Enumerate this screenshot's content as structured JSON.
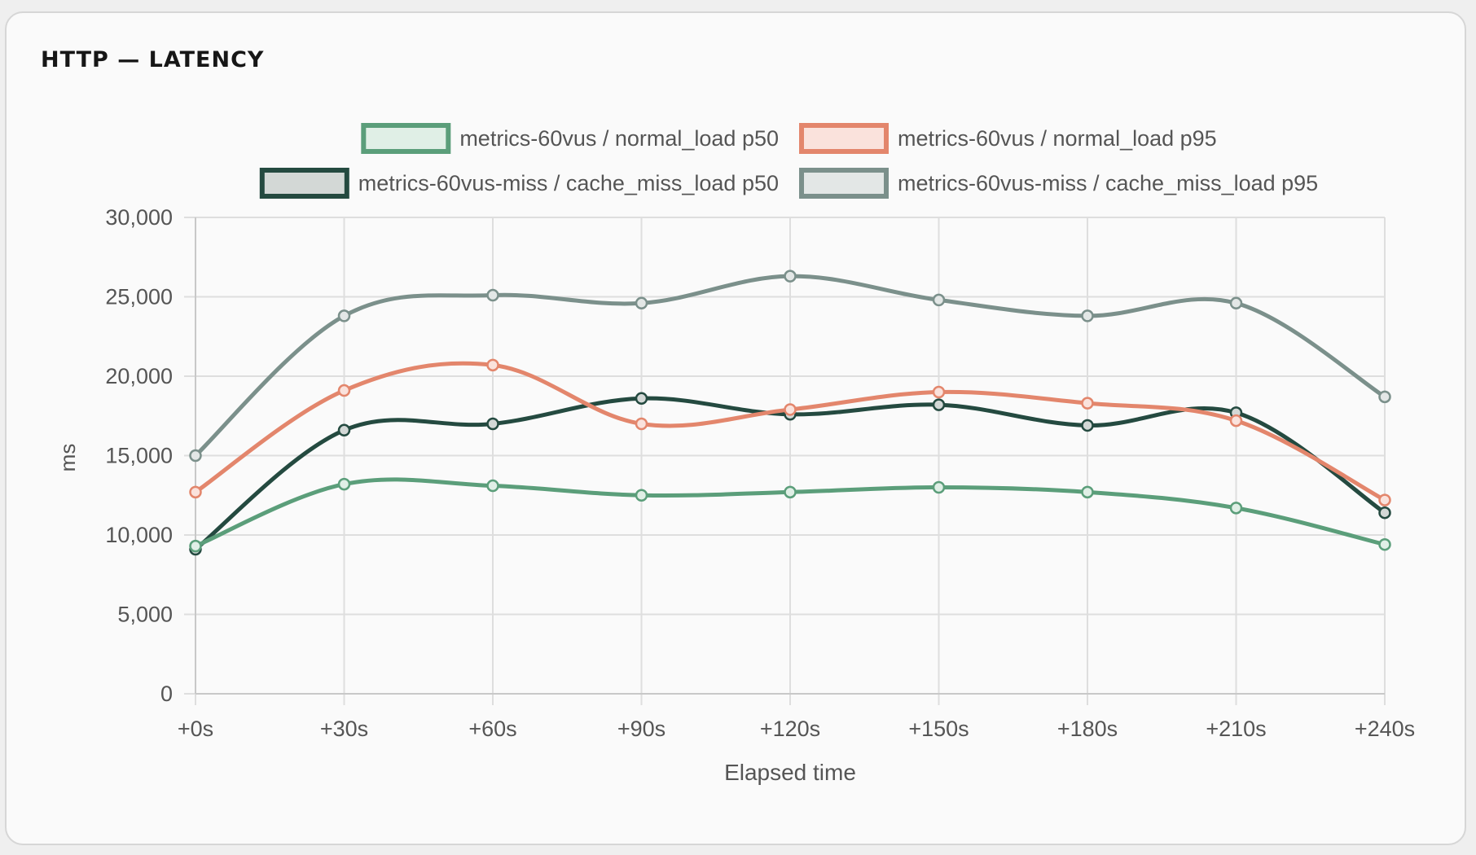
{
  "panel": {
    "title": "HTTP — LATENCY"
  },
  "chart_data": {
    "type": "line",
    "title": "",
    "xlabel": "Elapsed time",
    "ylabel": "ms",
    "categories": [
      "+0s",
      "+30s",
      "+60s",
      "+90s",
      "+120s",
      "+150s",
      "+180s",
      "+210s",
      "+240s"
    ],
    "ylim": [
      0,
      30000
    ],
    "yticks": [
      0,
      5000,
      10000,
      15000,
      20000,
      25000,
      30000
    ],
    "ytick_labels": [
      "0",
      "5,000",
      "10,000",
      "15,000",
      "20,000",
      "25,000",
      "30,000"
    ],
    "grid": true,
    "legend_position": "top",
    "series": [
      {
        "name": "metrics-60vus / normal_load p50",
        "color": "#5b9e7a",
        "fill": "#e0efe6",
        "values": [
          9300,
          13200,
          13100,
          12500,
          12700,
          13000,
          12700,
          11700,
          9400
        ]
      },
      {
        "name": "metrics-60vus / normal_load p95",
        "color": "#e3866c",
        "fill": "#fae2dc",
        "values": [
          12700,
          19100,
          20700,
          17000,
          17900,
          19000,
          18300,
          17200,
          12200
        ]
      },
      {
        "name": "metrics-60vus-miss / cache_miss_load p50",
        "color": "#244a40",
        "fill": "#d3d8d6",
        "values": [
          9100,
          16600,
          17000,
          18600,
          17600,
          18200,
          16900,
          17700,
          11400
        ]
      },
      {
        "name": "metrics-60vus-miss / cache_miss_load p95",
        "color": "#7b908b",
        "fill": "#e3e7e6",
        "values": [
          15000,
          23800,
          25100,
          24600,
          26300,
          24800,
          23800,
          24600,
          18700
        ]
      }
    ]
  }
}
